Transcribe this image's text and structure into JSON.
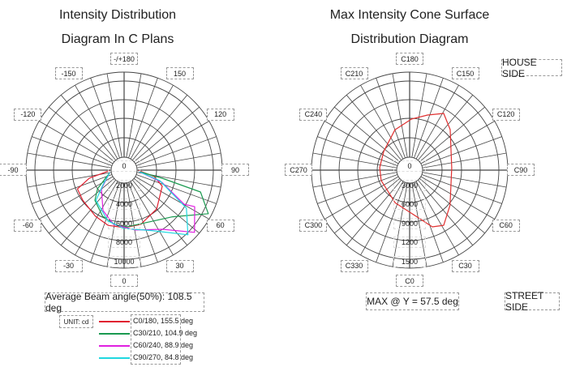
{
  "left": {
    "title_line1": "Intensity Distribution",
    "title_line2": "Diagram In C Plans",
    "angle_labels": [
      "0",
      "30",
      "60",
      "90",
      "120",
      "150",
      "-/+180",
      "-150",
      "-120",
      "-90",
      "-60",
      "-30"
    ],
    "radial_labels": [
      "0",
      "2000",
      "4000",
      "6000",
      "8000",
      "10000"
    ],
    "beam_angle_text": "Average Beam angle(50%): 108.5 deg",
    "unit_label": "UNIT: cd"
  },
  "right": {
    "title_line1": "Max Intensity Cone Surface",
    "title_line2": "Distribution Diagram",
    "angle_labels": [
      "C0",
      "C30",
      "C60",
      "C90",
      "C120",
      "C150",
      "C180",
      "C210",
      "C240",
      "C270",
      "C300",
      "C330"
    ],
    "radial_labels": [
      "0",
      "3000",
      "6000",
      "9000",
      "1200",
      "1500"
    ],
    "house_side": "HOUSE SIDE",
    "street_side": "STREET SIDE",
    "max_text": "MAX @ Y = 57.5 deg"
  },
  "chart_data": [
    {
      "type": "polar-line",
      "title": "Intensity Distribution Diagram In C Plans",
      "unit": "cd",
      "rmax": 10000,
      "series": [
        {
          "name": "C0/180, 155.5 deg",
          "color": "#e02030",
          "points": [
            [
              -88,
              200
            ],
            [
              -77,
              2890
            ],
            [
              -68,
              4740
            ],
            [
              -54,
              4850
            ],
            [
              -32,
              5260
            ],
            [
              -16,
              5670
            ],
            [
              0,
              5670
            ],
            [
              17,
              5570
            ],
            [
              40,
              4790
            ],
            [
              67,
              3610
            ],
            [
              78,
              2270
            ],
            [
              88,
              200
            ]
          ]
        },
        {
          "name": "C30/210, 104.9 deg",
          "color": "#1a9a50",
          "points": [
            [
              -80,
              200
            ],
            [
              -55,
              2470
            ],
            [
              -44,
              3700
            ],
            [
              -25,
              4820
            ],
            [
              -8,
              5430
            ],
            [
              3,
              5570
            ],
            [
              46,
              6900
            ],
            [
              62.6,
              10400
            ],
            [
              74,
              8450
            ],
            [
              78,
              3300
            ],
            [
              85,
              200
            ]
          ]
        },
        {
          "name": "C60/240, 88.9 deg",
          "color": "#e020e0",
          "points": [
            [
              -80,
              200
            ],
            [
              -50.6,
              2080
            ],
            [
              -27.5,
              4150
            ],
            [
              -11,
              5400
            ],
            [
              10.7,
              6100
            ],
            [
              32.8,
              7300
            ],
            [
              48.5,
              10300
            ],
            [
              62.6,
              8450
            ],
            [
              60.4,
              7130
            ],
            [
              72,
              3420
            ],
            [
              85,
              200
            ]
          ]
        },
        {
          "name": "C90/270, 84.8 deg",
          "color": "#20d8e0",
          "points": [
            [
              -80,
              200
            ],
            [
              -55,
              1630
            ],
            [
              -43,
              3600
            ],
            [
              -17.6,
              5150
            ],
            [
              0,
              5770
            ],
            [
              24.4,
              6800
            ],
            [
              44.6,
              9900
            ],
            [
              58.6,
              7630
            ],
            [
              73.5,
              3090
            ],
            [
              85,
              200
            ]
          ]
        }
      ]
    },
    {
      "type": "polar-line",
      "title": "Max Intensity Cone Surface Distribution Diagram",
      "rmax": 15000,
      "series": [
        {
          "name": "Max cone",
          "color": "#e03030",
          "closed": true,
          "points": [
            [
              21.8,
              9190
            ],
            [
              31.7,
              9900
            ],
            [
              49,
              7730
            ],
            [
              93,
              5570
            ],
            [
              135,
              8460
            ],
            [
              149,
              10150
            ],
            [
              162,
              8580
            ],
            [
              178,
              7270
            ],
            [
              200,
              5720
            ],
            [
              234,
              3620
            ],
            [
              265,
              3250
            ],
            [
              290,
              3300
            ],
            [
              336,
              4330
            ]
          ]
        }
      ]
    }
  ]
}
